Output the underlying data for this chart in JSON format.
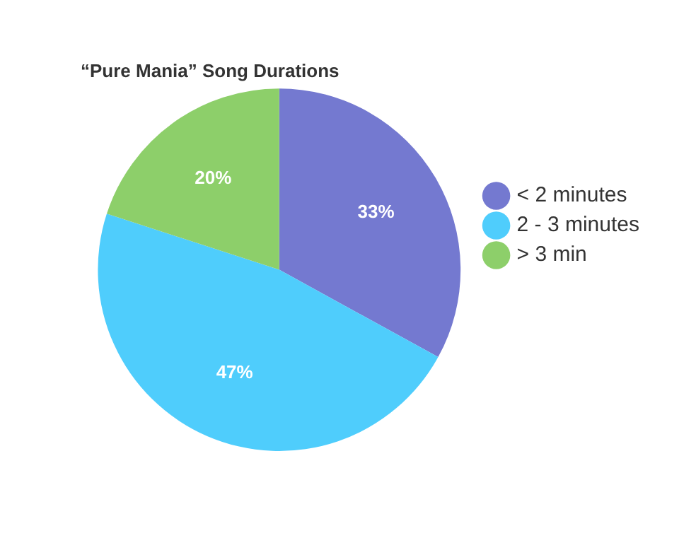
{
  "chart_data": {
    "type": "pie",
    "title": "“Pure Mania” Song Durations",
    "categories": [
      "< 2 minutes",
      "2 - 3 minutes",
      "> 3 min"
    ],
    "values": [
      33,
      47,
      20
    ],
    "colors": [
      "#7479d0",
      "#4fcdfc",
      "#8dcf6a"
    ],
    "value_labels": [
      "33%",
      "47%",
      "20%"
    ],
    "legend": "right"
  }
}
